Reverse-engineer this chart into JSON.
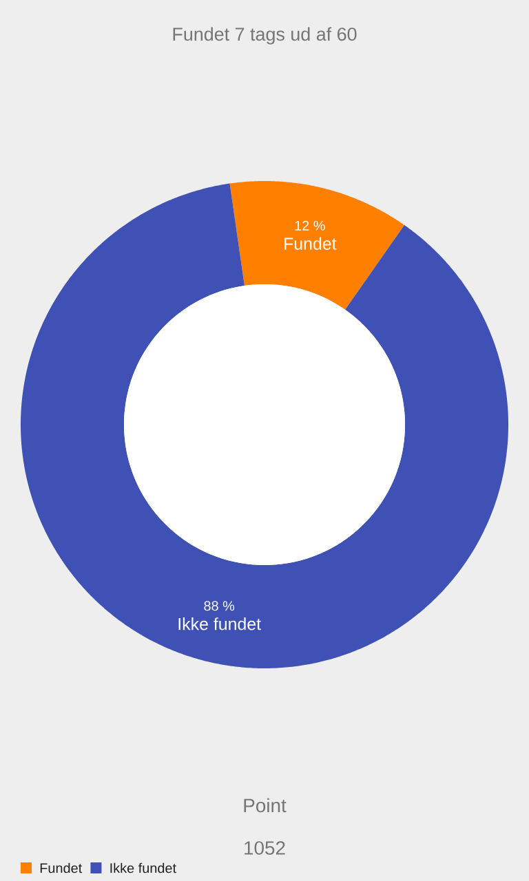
{
  "chart_data": {
    "type": "donut",
    "title": "Fundet 7 tags ud af 60",
    "categories": [
      "Fundet",
      "Ikke fundet"
    ],
    "values": [
      12,
      88
    ],
    "colors": [
      "#ff7f00",
      "#3f51b5"
    ],
    "value_labels": [
      "12 %",
      "88 %"
    ],
    "legend": "bottom left",
    "annotations": [
      "Point",
      "1052"
    ]
  }
}
